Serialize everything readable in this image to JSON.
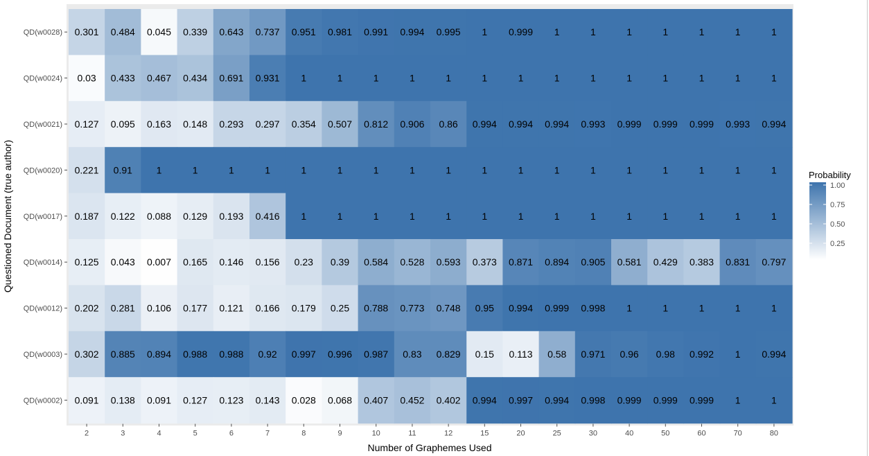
{
  "chart_data": {
    "type": "heatmap",
    "xlabel": "Number of Graphemes Used",
    "ylabel": "Questioned Document (true author)",
    "x": [
      "2",
      "3",
      "4",
      "5",
      "6",
      "7",
      "8",
      "9",
      "10",
      "11",
      "12",
      "15",
      "20",
      "25",
      "30",
      "40",
      "50",
      "60",
      "70",
      "80"
    ],
    "y": [
      "QD(w0028)",
      "QD(w0024)",
      "QD(w0021)",
      "QD(w0020)",
      "QD(w0017)",
      "QD(w0014)",
      "QD(w0012)",
      "QD(w0003)",
      "QD(w0002)"
    ],
    "values": [
      [
        "0.301",
        "0.484",
        "0.045",
        "0.339",
        "0.643",
        "0.737",
        "0.951",
        "0.981",
        "0.991",
        "0.994",
        "0.995",
        "1",
        "0.999",
        "1",
        "1",
        "1",
        "1",
        "1",
        "1",
        "1"
      ],
      [
        "0.03",
        "0.433",
        "0.467",
        "0.434",
        "0.691",
        "0.931",
        "1",
        "1",
        "1",
        "1",
        "1",
        "1",
        "1",
        "1",
        "1",
        "1",
        "1",
        "1",
        "1",
        "1"
      ],
      [
        "0.127",
        "0.095",
        "0.163",
        "0.148",
        "0.293",
        "0.297",
        "0.354",
        "0.507",
        "0.812",
        "0.906",
        "0.86",
        "0.994",
        "0.994",
        "0.994",
        "0.993",
        "0.999",
        "0.999",
        "0.999",
        "0.993",
        "0.994"
      ],
      [
        "0.221",
        "0.91",
        "1",
        "1",
        "1",
        "1",
        "1",
        "1",
        "1",
        "1",
        "1",
        "1",
        "1",
        "1",
        "1",
        "1",
        "1",
        "1",
        "1",
        "1"
      ],
      [
        "0.187",
        "0.122",
        "0.088",
        "0.129",
        "0.193",
        "0.416",
        "1",
        "1",
        "1",
        "1",
        "1",
        "1",
        "1",
        "1",
        "1",
        "1",
        "1",
        "1",
        "1",
        "1"
      ],
      [
        "0.125",
        "0.043",
        "0.007",
        "0.165",
        "0.146",
        "0.156",
        "0.23",
        "0.39",
        "0.584",
        "0.528",
        "0.593",
        "0.373",
        "0.871",
        "0.894",
        "0.905",
        "0.581",
        "0.429",
        "0.383",
        "0.831",
        "0.797"
      ],
      [
        "0.202",
        "0.281",
        "0.106",
        "0.177",
        "0.121",
        "0.166",
        "0.179",
        "0.25",
        "0.788",
        "0.773",
        "0.748",
        "0.95",
        "0.994",
        "0.999",
        "0.998",
        "1",
        "1",
        "1",
        "1",
        "1"
      ],
      [
        "0.302",
        "0.885",
        "0.894",
        "0.988",
        "0.988",
        "0.92",
        "0.997",
        "0.996",
        "0.987",
        "0.83",
        "0.829",
        "0.15",
        "0.113",
        "0.58",
        "0.971",
        "0.96",
        "0.98",
        "0.992",
        "1",
        "0.994"
      ],
      [
        "0.091",
        "0.138",
        "0.091",
        "0.127",
        "0.123",
        "0.143",
        "0.028",
        "0.068",
        "0.407",
        "0.452",
        "0.402",
        "0.994",
        "0.997",
        "0.994",
        "0.998",
        "0.999",
        "0.999",
        "0.999",
        "1",
        "1"
      ]
    ],
    "legend": {
      "title": "Probability",
      "ticks": [
        "0.25",
        "0.50",
        "0.75",
        "1.00"
      ],
      "placement": "right"
    },
    "color_range": [
      "#ffffff",
      "#3e74ad"
    ],
    "panel_background": "#ebebeb"
  }
}
